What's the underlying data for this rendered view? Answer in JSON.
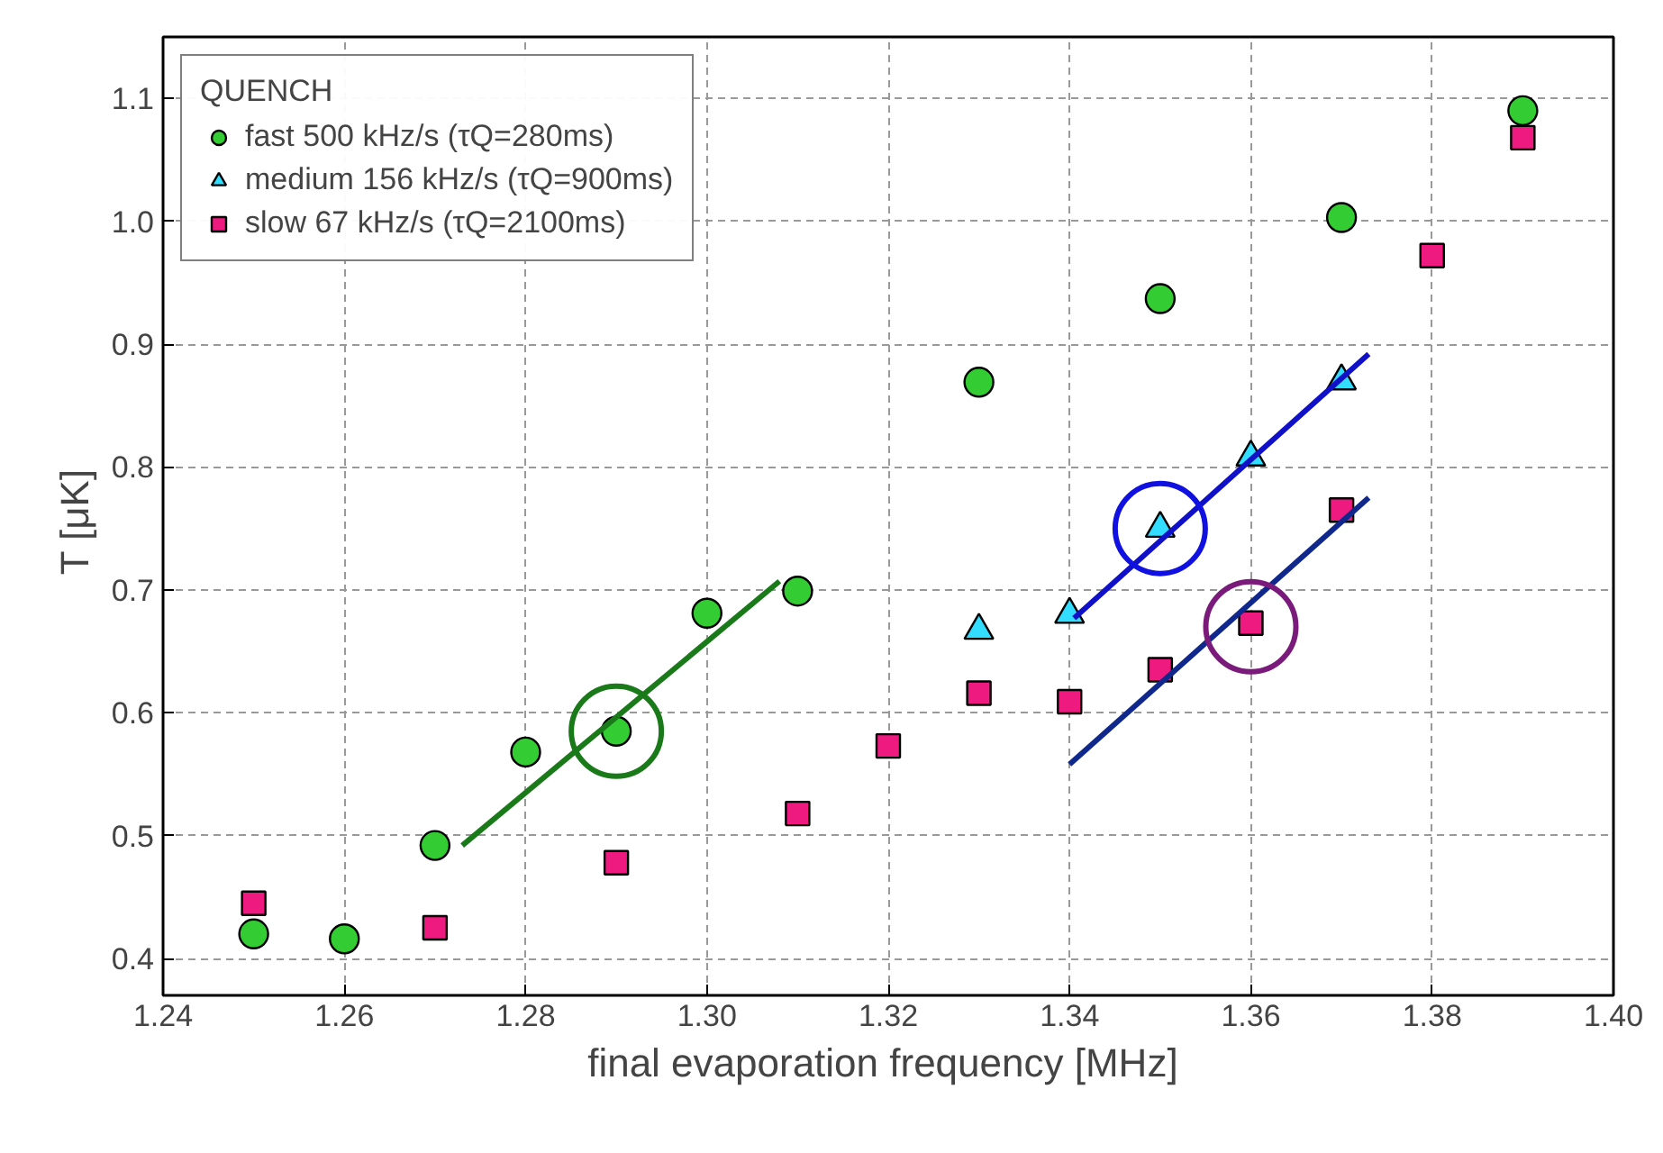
{
  "chart_data": {
    "type": "scatter",
    "xlabel": "final evaporation frequency  [MHz]",
    "ylabel": "T  [μK]",
    "legend_title": "QUENCH",
    "legend": "top left",
    "grid": true,
    "xlim": [
      1.24,
      1.4
    ],
    "ylim": [
      0.37,
      1.15
    ],
    "xticks": [
      {
        "value": 1.24,
        "label": "1.24"
      },
      {
        "value": 1.26,
        "label": "1.26"
      },
      {
        "value": 1.28,
        "label": "1.28"
      },
      {
        "value": 1.3,
        "label": "1.30"
      },
      {
        "value": 1.32,
        "label": "1.32"
      },
      {
        "value": 1.34,
        "label": "1.34"
      },
      {
        "value": 1.36,
        "label": "1.36"
      },
      {
        "value": 1.38,
        "label": "1.38"
      },
      {
        "value": 1.4,
        "label": "1.40"
      }
    ],
    "yticks": [
      0.4,
      0.5,
      0.6,
      0.7,
      0.8,
      0.9,
      {
        "value": 1.0,
        "label": "1.0"
      },
      1.1
    ],
    "series": [
      {
        "name": "fast 500 kHz/s (τQ=280ms)",
        "marker": "circle",
        "color": "#33cc33",
        "x": [
          1.25,
          1.26,
          1.27,
          1.28,
          1.29,
          1.3,
          1.31,
          1.33,
          1.35,
          1.37,
          1.39
        ],
        "values": [
          0.42,
          0.416,
          0.492,
          0.568,
          0.585,
          0.681,
          0.699,
          0.869,
          0.937,
          1.003,
          1.09
        ]
      },
      {
        "name": "medium 156 kHz/s (τQ=900ms)",
        "marker": "triangle",
        "color": "#33ddff",
        "x": [
          1.33,
          1.34,
          1.35,
          1.36,
          1.37
        ],
        "values": [
          0.667,
          0.68,
          0.75,
          0.808,
          0.87
        ]
      },
      {
        "name": "slow 67 kHz/s (τQ=2100ms)",
        "marker": "square",
        "color": "#ee1a80",
        "x": [
          1.25,
          1.27,
          1.29,
          1.31,
          1.32,
          1.33,
          1.34,
          1.35,
          1.36,
          1.37,
          1.38,
          1.39
        ],
        "values": [
          0.445,
          0.425,
          0.478,
          0.518,
          0.573,
          0.616,
          0.609,
          0.635,
          0.673,
          0.765,
          0.972,
          1.068
        ]
      },
      {
        "type": "line",
        "color": "#1a7a1a",
        "x": [
          1.273,
          1.308
        ],
        "values": [
          0.492,
          0.707
        ]
      },
      {
        "type": "line",
        "color": "#1010c8",
        "x": [
          1.3405,
          1.373
        ],
        "values": [
          0.677,
          0.892
        ]
      },
      {
        "type": "line",
        "color": "#10288c",
        "x": [
          1.34,
          1.373
        ],
        "values": [
          0.558,
          0.775
        ]
      },
      {
        "type": "bubble",
        "color": "#1a7a1a",
        "x": [
          1.29
        ],
        "values": [
          0.585
        ],
        "sizes": [
          1
        ]
      },
      {
        "type": "bubble",
        "color": "#1010e0",
        "x": [
          1.35
        ],
        "values": [
          0.75
        ],
        "sizes": [
          1
        ]
      },
      {
        "type": "bubble",
        "color": "#7a1a7a",
        "x": [
          1.36
        ],
        "values": [
          0.67
        ],
        "sizes": [
          1
        ]
      }
    ]
  }
}
